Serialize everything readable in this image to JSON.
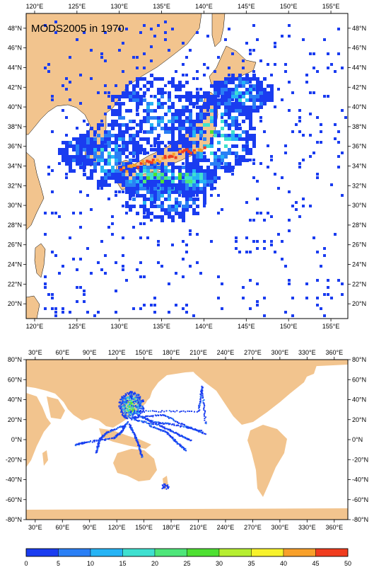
{
  "figure_title": "MODS2005 in 1970",
  "colors": {
    "land": "#f2c48e",
    "ocean": "#ffffff",
    "frame": "#000000"
  },
  "regional_map": {
    "lon_labels": [
      "120°E",
      "125°E",
      "130°E",
      "135°E",
      "140°E",
      "145°E",
      "150°E",
      "155°E"
    ],
    "lat_labels": [
      "48°N",
      "46°N",
      "44°N",
      "42°N",
      "40°N",
      "38°N",
      "36°N",
      "34°N",
      "32°N",
      "30°N",
      "28°N",
      "26°N",
      "24°N",
      "22°N",
      "20°N"
    ],
    "lon_range": [
      119,
      157
    ],
    "lat_range": [
      18.5,
      49.5
    ]
  },
  "global_map": {
    "lon_labels": [
      "30°E",
      "60°E",
      "90°E",
      "120°E",
      "150°E",
      "180°E",
      "210°E",
      "240°E",
      "270°E",
      "300°E",
      "330°E",
      "360°E"
    ],
    "lat_labels": [
      "80°N",
      "60°N",
      "40°N",
      "20°N",
      "0°N",
      "-20°N",
      "-40°N",
      "-60°N",
      "-80°N"
    ],
    "lon_range": [
      20,
      375
    ],
    "lat_range": [
      -80,
      80
    ]
  },
  "colorbar": {
    "labels": [
      "0",
      "5",
      "10",
      "15",
      "20",
      "25",
      "30",
      "35",
      "40",
      "45",
      "50"
    ],
    "colors": [
      "#1a3cf0",
      "#2a7ff5",
      "#26b4f5",
      "#3fe0d0",
      "#4ee67a",
      "#4ee032",
      "#b6ee30",
      "#f7f22c",
      "#f8a02a",
      "#f03c1e"
    ]
  }
}
